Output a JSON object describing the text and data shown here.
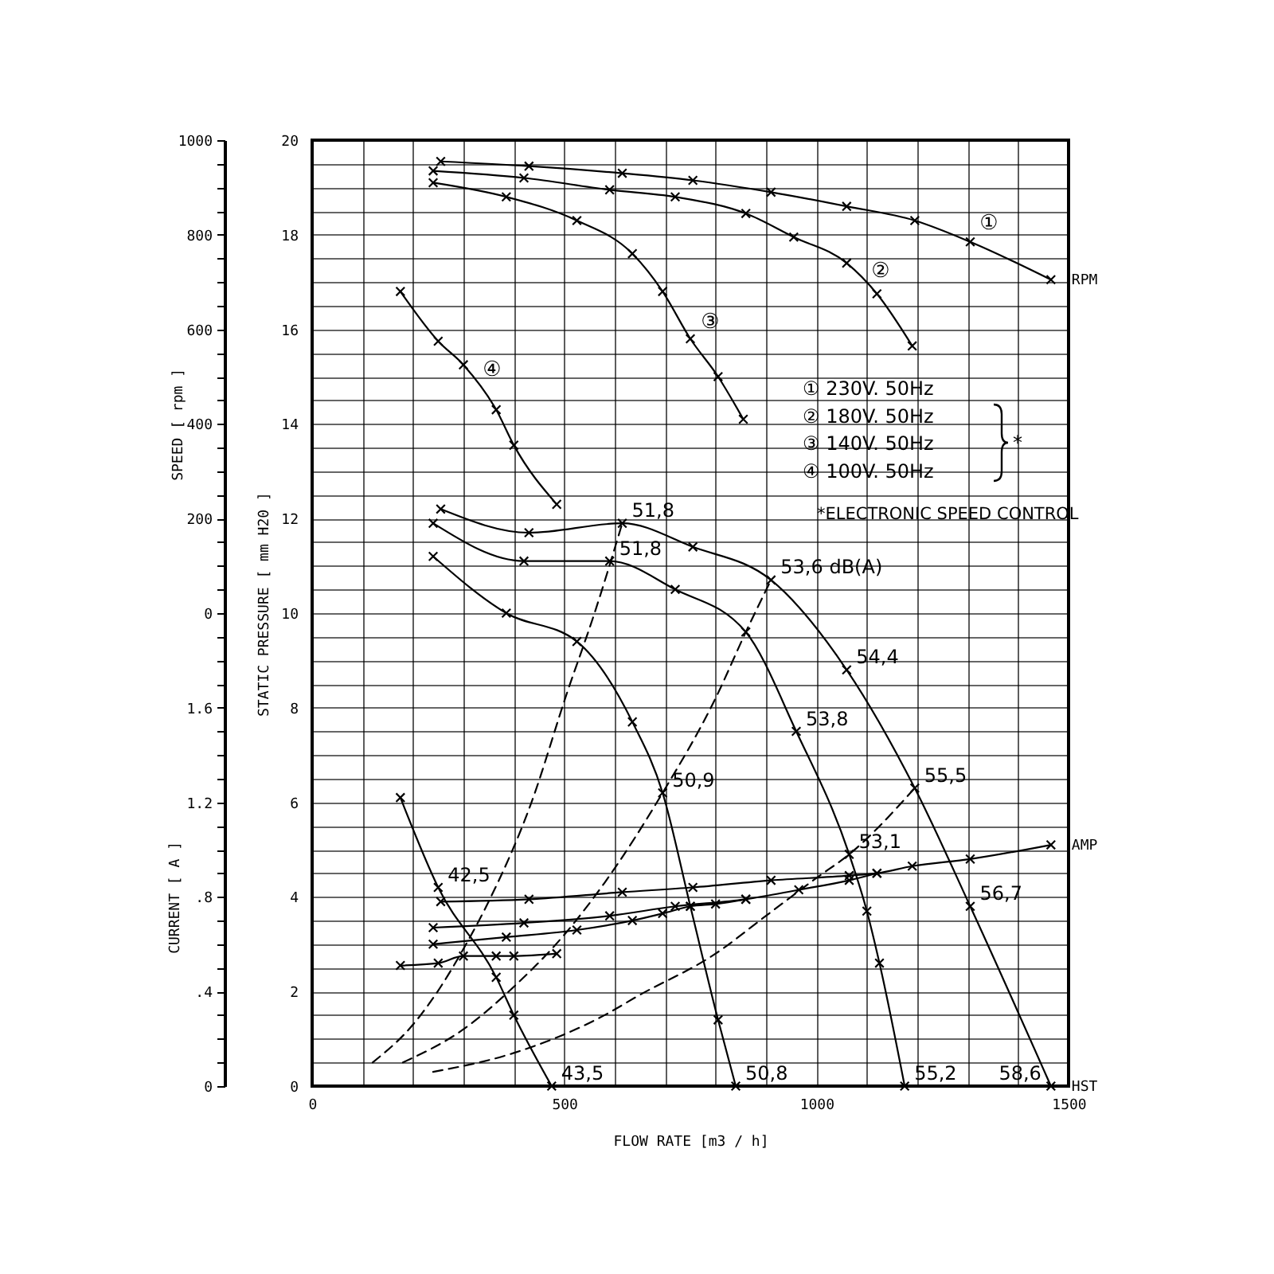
{
  "chart_data": {
    "type": "line",
    "xlabel": "FLOW RATE [m3 / h]",
    "ylabel": "STATIC PRESSURE [ mm H20 ]",
    "y2label": "SPEED [ rpm ]",
    "y3label": "CURRENT [ A ]",
    "xlim": [
      0,
      1500
    ],
    "xticks": [
      0,
      {
        "value": 100,
        "label": null
      },
      {
        "value": 200,
        "label": null
      },
      {
        "value": 300,
        "label": null
      },
      {
        "value": 400,
        "label": null
      },
      500,
      {
        "value": 600,
        "label": null
      },
      {
        "value": 700,
        "label": null
      },
      {
        "value": 800,
        "label": null
      },
      {
        "value": 900,
        "label": null
      },
      1000,
      {
        "value": 1100,
        "label": null
      },
      {
        "value": 1200,
        "label": null
      },
      {
        "value": 1300,
        "label": null
      },
      {
        "value": 1400,
        "label": null
      },
      1500
    ],
    "ylim": [
      0,
      20
    ],
    "yticks": [
      0,
      {
        "value": 0.5,
        "label": null
      },
      {
        "value": 1,
        "label": null
      },
      {
        "value": 1.5,
        "label": null
      },
      2,
      {
        "value": 2.5,
        "label": null
      },
      {
        "value": 3,
        "label": null
      },
      {
        "value": 3.5,
        "label": null
      },
      4,
      {
        "value": 4.5,
        "label": null
      },
      {
        "value": 5,
        "label": null
      },
      {
        "value": 5.5,
        "label": null
      },
      6,
      {
        "value": 6.5,
        "label": null
      },
      {
        "value": 7,
        "label": null
      },
      {
        "value": 7.5,
        "label": null
      },
      8,
      {
        "value": 8.5,
        "label": null
      },
      {
        "value": 9,
        "label": null
      },
      {
        "value": 9.5,
        "label": null
      },
      10,
      {
        "value": 10.5,
        "label": null
      },
      {
        "value": 11,
        "label": null
      },
      {
        "value": 11.5,
        "label": null
      },
      12,
      {
        "value": 12.5,
        "label": null
      },
      {
        "value": 13,
        "label": null
      },
      {
        "value": 13.5,
        "label": null
      },
      14,
      {
        "value": 14.5,
        "label": null
      },
      {
        "value": 15,
        "label": null
      },
      {
        "value": 15.5,
        "label": null
      },
      16,
      {
        "value": 16.5,
        "label": null
      },
      {
        "value": 17,
        "label": null
      },
      {
        "value": 17.5,
        "label": null
      },
      18,
      {
        "value": 18.5,
        "label": null
      },
      {
        "value": 19,
        "label": null
      },
      {
        "value": 19.5,
        "label": null
      },
      20
    ],
    "y2lim": [
      -1000,
      1000
    ],
    "y2ticks": [
      0,
      {
        "value": 50,
        "label": null
      },
      {
        "value": 100,
        "label": null
      },
      {
        "value": 150,
        "label": null
      },
      200,
      {
        "value": 250,
        "label": null
      },
      {
        "value": 300,
        "label": null
      },
      {
        "value": 350,
        "label": null
      },
      400,
      {
        "value": 450,
        "label": null
      },
      {
        "value": 500,
        "label": null
      },
      {
        "value": 550,
        "label": null
      },
      600,
      {
        "value": 650,
        "label": null
      },
      {
        "value": 700,
        "label": null
      },
      {
        "value": 750,
        "label": null
      },
      800,
      {
        "value": 850,
        "label": null
      },
      {
        "value": 900,
        "label": null
      },
      {
        "value": 950,
        "label": null
      },
      1000
    ],
    "y3lim": [
      0,
      4
    ],
    "y3ticks": [
      0,
      {
        "value": 0.1,
        "label": null
      },
      {
        "value": 0.2,
        "label": null
      },
      {
        "value": 0.3,
        "label": null
      },
      {
        "value": 0.4,
        "label": ".4"
      },
      {
        "value": 0.5,
        "label": null
      },
      {
        "value": 0.6,
        "label": null
      },
      {
        "value": 0.7,
        "label": null
      },
      {
        "value": 0.8,
        "label": ".8"
      },
      {
        "value": 0.9,
        "label": null
      },
      {
        "value": 1,
        "label": null
      },
      {
        "value": 1.1,
        "label": null
      },
      1.2,
      {
        "value": 1.3,
        "label": null
      },
      {
        "value": 1.4,
        "label": null
      },
      {
        "value": 1.5,
        "label": null
      },
      1.6,
      {
        "value": 1.7,
        "label": null
      },
      {
        "value": 1.8,
        "label": null
      },
      {
        "value": 1.9,
        "label": null
      }
    ],
    "grid": true,
    "marker": "cross",
    "line_style": "solid",
    "series": [
      {
        "name": "HST",
        "color": "#000000",
        "x": [
          255,
          430,
          615,
          755,
          910,
          1060,
          1195,
          1305,
          1465
        ],
        "values": [
          12.2,
          11.7,
          11.9,
          11.4,
          10.7,
          8.8,
          6.3,
          3.8,
          0
        ]
      },
      {
        "color": "#000000",
        "x": [
          240,
          420,
          590,
          720,
          860,
          960,
          1065,
          1100,
          1125,
          1175
        ],
        "values": [
          11.9,
          11.1,
          11.1,
          10.5,
          9.6,
          7.5,
          4.9,
          3.7,
          2.6,
          0
        ]
      },
      {
        "color": "#000000",
        "x": [
          240,
          385,
          525,
          635,
          695,
          750,
          805,
          840
        ],
        "values": [
          11.2,
          10,
          9.4,
          7.7,
          6.2,
          3.8,
          1.4,
          0
        ]
      },
      {
        "color": "#000000",
        "x": [
          175,
          250,
          365,
          400,
          475
        ],
        "values": [
          6.1,
          4.2,
          2.3,
          1.5,
          0
        ]
      },
      {
        "name": "RPM",
        "axis": "y2",
        "color": "#000000",
        "x": [
          255,
          430,
          615,
          755,
          910,
          1060,
          1195,
          1305,
          1465
        ],
        "values": [
          955,
          945,
          930,
          915,
          890,
          860,
          830,
          785,
          705
        ]
      },
      {
        "axis": "y2",
        "color": "#000000",
        "x": [
          240,
          420,
          590,
          720,
          860,
          955,
          1060,
          1120,
          1190
        ],
        "values": [
          935,
          920,
          895,
          880,
          845,
          795,
          740,
          675,
          565
        ]
      },
      {
        "axis": "y2",
        "color": "#000000",
        "x": [
          240,
          385,
          525,
          635,
          695,
          750,
          805,
          855
        ],
        "values": [
          910,
          880,
          830,
          760,
          680,
          580,
          500,
          410
        ]
      },
      {
        "axis": "y2",
        "color": "#000000",
        "x": [
          175,
          250,
          300,
          365,
          400,
          485
        ],
        "values": [
          680,
          575,
          525,
          430,
          355,
          230
        ]
      },
      {
        "name": "AMP",
        "axis": "y3",
        "color": "#000000",
        "x": [
          255,
          430,
          615,
          755,
          910,
          1065,
          1120,
          1190,
          1305,
          1465
        ],
        "values": [
          0.78,
          0.79,
          0.82,
          0.84,
          0.87,
          0.89,
          0.9,
          0.93,
          0.96,
          1.02
        ]
      },
      {
        "axis": "y3",
        "color": "#000000",
        "x": [
          240,
          420,
          590,
          720,
          860,
          965,
          1065,
          1120
        ],
        "values": [
          0.67,
          0.69,
          0.72,
          0.76,
          0.79,
          0.83,
          0.87,
          0.9
        ]
      },
      {
        "axis": "y3",
        "color": "#000000",
        "x": [
          240,
          385,
          525,
          635,
          695,
          750,
          800,
          860
        ],
        "values": [
          0.6,
          0.63,
          0.66,
          0.7,
          0.73,
          0.76,
          0.77,
          0.79
        ]
      },
      {
        "axis": "y3",
        "color": "#000000",
        "x": [
          175,
          250,
          300,
          365,
          400,
          485
        ],
        "values": [
          0.51,
          0.52,
          0.55,
          0.55,
          0.55,
          0.56
        ]
      },
      {
        "color": "#000000",
        "line_style": "dashed",
        "marker": "none",
        "x": [
          120,
          200,
          255,
          300,
          350,
          435,
          505,
          560,
          615
        ],
        "values": [
          0.5,
          1.3,
          2.1,
          2.9,
          3.9,
          6,
          8.3,
          10,
          11.9
        ]
      },
      {
        "color": "#000000",
        "line_style": "dashed",
        "marker": "none",
        "x": [
          180,
          300,
          400,
          500,
          580,
          695,
          800,
          860,
          910
        ],
        "values": [
          0.5,
          1.2,
          2.1,
          3.2,
          4.3,
          6.2,
          8.2,
          9.6,
          10.7
        ]
      },
      {
        "color": "#000000",
        "line_style": "dashed",
        "marker": "none",
        "x": [
          240,
          400,
          580,
          645,
          800,
          900,
          1000,
          1065,
          1195
        ],
        "values": [
          0.3,
          0.7,
          1.5,
          1.9,
          2.8,
          3.6,
          4.4,
          4.9,
          6.3
        ]
      }
    ],
    "annotations": [
      "①",
      "②",
      "③",
      "④",
      {
        "text": "51,8",
        "x": 615,
        "y": 11.9
      },
      {
        "text": "51,8",
        "x": 590,
        "y": 11.1
      },
      {
        "text": "53,6 dB(A)",
        "x": 910,
        "y": 10.7
      },
      {
        "text": "54,4",
        "x": 1060,
        "y": 8.8
      },
      {
        "text": "53,8",
        "x": 960,
        "y": 7.5
      },
      {
        "text": "55,5",
        "x": 1195,
        "y": 6.3
      },
      {
        "text": "50,9",
        "x": 695,
        "y": 6.2
      },
      {
        "text": "53,1",
        "x": 1065,
        "y": 4.9
      },
      {
        "text": "56,7",
        "x": 1305,
        "y": 3.8
      },
      {
        "text": "42,5",
        "x": 250,
        "y": 4.2
      },
      {
        "text": "43,5",
        "x": 475,
        "y": 0
      },
      {
        "text": "50,8",
        "x": 840,
        "y": 0
      },
      {
        "text": "55,2",
        "x": 1175,
        "y": 0
      },
      {
        "text": "58,6",
        "x": 1465,
        "y": 0
      },
      "① 230V. 50Hz",
      "② 180V. 50Hz",
      "③ 140V. 50Hz",
      "④ 100V. 50Hz",
      "*",
      "*ELECTRONIC SPEED CONTROL"
    ]
  }
}
